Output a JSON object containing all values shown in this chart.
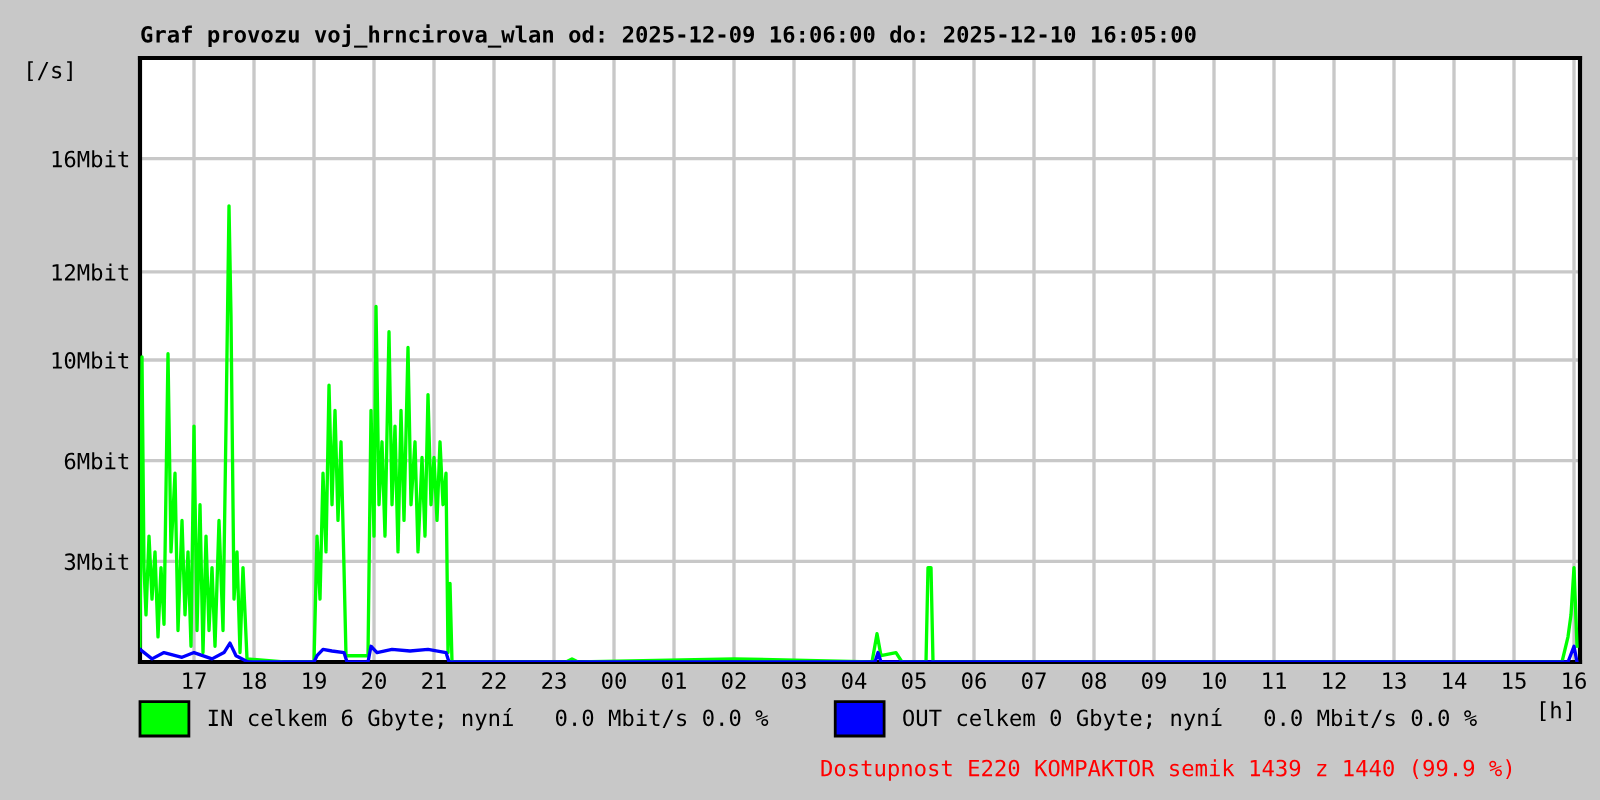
{
  "chart_data": {
    "type": "line",
    "title": "Graf provozu voj_hrncirova_wlan od: 2025-12-09 16:06:00 do: 2025-12-10 16:05:00",
    "xlabel": "[h]",
    "ylabel": "[/s]",
    "xlim": [
      "2025-12-09T16:06",
      "2025-12-10T16:06"
    ],
    "ylim": [
      0,
      19.2
    ],
    "xticks": [
      {
        "value": "2025-12-09T17:00",
        "label": "17"
      },
      {
        "value": "2025-12-09T18:00",
        "label": "18"
      },
      {
        "value": "2025-12-09T19:00",
        "label": "19"
      },
      {
        "value": "2025-12-09T20:00",
        "label": "20"
      },
      {
        "value": "2025-12-09T21:00",
        "label": "21"
      },
      {
        "value": "2025-12-09T22:00",
        "label": "22"
      },
      {
        "value": "2025-12-09T23:00",
        "label": "23"
      },
      {
        "value": "2025-12-10T00:00",
        "label": "00"
      },
      {
        "value": "2025-12-10T01:00",
        "label": "01"
      },
      {
        "value": "2025-12-10T02:00",
        "label": "02"
      },
      {
        "value": "2025-12-10T03:00",
        "label": "03"
      },
      {
        "value": "2025-12-10T04:00",
        "label": "04"
      },
      {
        "value": "2025-12-10T05:00",
        "label": "05"
      },
      {
        "value": "2025-12-10T06:00",
        "label": "06"
      },
      {
        "value": "2025-12-10T07:00",
        "label": "07"
      },
      {
        "value": "2025-12-10T08:00",
        "label": "08"
      },
      {
        "value": "2025-12-10T09:00",
        "label": "09"
      },
      {
        "value": "2025-12-10T10:00",
        "label": "10"
      },
      {
        "value": "2025-12-10T11:00",
        "label": "11"
      },
      {
        "value": "2025-12-10T12:00",
        "label": "12"
      },
      {
        "value": "2025-12-10T13:00",
        "label": "13"
      },
      {
        "value": "2025-12-10T14:00",
        "label": "14"
      },
      {
        "value": "2025-12-10T15:00",
        "label": "15"
      },
      {
        "value": "2025-12-10T16:00",
        "label": "16"
      }
    ],
    "yticks": [
      {
        "value": 3.2,
        "label": "3Mbit"
      },
      {
        "value": 6.4,
        "label": "6Mbit"
      },
      {
        "value": 9.6,
        "label": "10Mbit"
      },
      {
        "value": 12.4,
        "label": "12Mbit"
      },
      {
        "value": 16,
        "label": "16Mbit"
      }
    ],
    "grid": true,
    "legend": "bottom",
    "series": [
      {
        "name": "IN celkem 6 Gbyte; nyní   0.0 Mbit/s 0.0 %",
        "color": "#00ff00",
        "x": [
          "2025-12-09T16:06",
          "2025-12-09T16:08",
          "2025-12-09T16:10",
          "2025-12-09T16:12",
          "2025-12-09T16:15",
          "2025-12-09T16:18",
          "2025-12-09T16:21",
          "2025-12-09T16:24",
          "2025-12-09T16:27",
          "2025-12-09T16:30",
          "2025-12-09T16:34",
          "2025-12-09T16:37",
          "2025-12-09T16:41",
          "2025-12-09T16:44",
          "2025-12-09T16:48",
          "2025-12-09T16:51",
          "2025-12-09T16:54",
          "2025-12-09T16:57",
          "2025-12-09T17:00",
          "2025-12-09T17:03",
          "2025-12-09T17:06",
          "2025-12-09T17:09",
          "2025-12-09T17:12",
          "2025-12-09T17:15",
          "2025-12-09T17:18",
          "2025-12-09T17:21",
          "2025-12-09T17:25",
          "2025-12-09T17:29",
          "2025-12-09T17:32",
          "2025-12-09T17:35",
          "2025-12-09T17:37",
          "2025-12-09T17:40",
          "2025-12-09T17:43",
          "2025-12-09T17:46",
          "2025-12-09T17:49",
          "2025-12-09T17:53",
          "2025-12-09T18:30",
          "2025-12-09T19:00",
          "2025-12-09T19:03",
          "2025-12-09T19:06",
          "2025-12-09T19:09",
          "2025-12-09T19:12",
          "2025-12-09T19:15",
          "2025-12-09T19:18",
          "2025-12-09T19:21",
          "2025-12-09T19:24",
          "2025-12-09T19:27",
          "2025-12-09T19:30",
          "2025-12-09T19:32",
          "2025-12-09T19:54",
          "2025-12-09T19:57",
          "2025-12-09T20:00",
          "2025-12-09T20:02",
          "2025-12-09T20:05",
          "2025-12-09T20:08",
          "2025-12-09T20:11",
          "2025-12-09T20:15",
          "2025-12-09T20:18",
          "2025-12-09T20:21",
          "2025-12-09T20:24",
          "2025-12-09T20:27",
          "2025-12-09T20:30",
          "2025-12-09T20:34",
          "2025-12-09T20:37",
          "2025-12-09T20:41",
          "2025-12-09T20:44",
          "2025-12-09T20:48",
          "2025-12-09T20:51",
          "2025-12-09T20:54",
          "2025-12-09T20:57",
          "2025-12-09T21:00",
          "2025-12-09T21:03",
          "2025-12-09T21:06",
          "2025-12-09T21:09",
          "2025-12-09T21:12",
          "2025-12-09T21:14",
          "2025-12-09T21:16",
          "2025-12-09T21:18",
          "2025-12-09T23:12",
          "2025-12-09T23:18",
          "2025-12-09T23:24",
          "2025-12-10T02:00",
          "2025-12-10T04:18",
          "2025-12-10T04:23",
          "2025-12-10T04:27",
          "2025-12-10T04:42",
          "2025-12-10T04:48",
          "2025-12-10T05:12",
          "2025-12-10T05:14",
          "2025-12-10T05:17",
          "2025-12-10T05:19",
          "2025-12-10T15:48",
          "2025-12-10T15:54",
          "2025-12-10T15:57",
          "2025-12-10T16:00",
          "2025-12-10T16:03"
        ],
        "values": [
          0.5,
          9.7,
          3,
          1.5,
          4,
          2,
          3.5,
          0.8,
          3,
          1.2,
          9.8,
          3.5,
          6,
          1,
          4.5,
          1.5,
          3.5,
          0.5,
          7.5,
          1,
          5,
          0.3,
          4,
          1,
          3,
          0.5,
          4.5,
          1,
          7.5,
          14.5,
          11,
          2,
          3.5,
          0.3,
          3,
          0.1,
          0,
          0,
          4,
          2,
          6,
          3.5,
          8.8,
          5,
          8,
          4.5,
          7,
          3,
          0.2,
          0.2,
          8,
          4,
          11.3,
          5,
          7,
          4,
          10.5,
          5,
          7.5,
          3.5,
          8,
          4.5,
          10,
          5,
          7,
          3.5,
          6.5,
          4,
          8.5,
          5,
          6.5,
          4.5,
          7,
          5,
          6,
          0.3,
          2.5,
          0,
          0,
          0.1,
          0,
          0.1,
          0,
          0.9,
          0.2,
          0.3,
          0,
          0,
          3.0,
          3.0,
          0,
          0,
          0.8,
          1.5,
          3.0,
          0.5
        ]
      },
      {
        "name": "OUT celkem 0 Gbyte; nyní   0.0 Mbit/s 0.0 %",
        "color": "#0000ff",
        "x": [
          "2025-12-09T16:06",
          "2025-12-09T16:18",
          "2025-12-09T16:30",
          "2025-12-09T16:48",
          "2025-12-09T17:00",
          "2025-12-09T17:18",
          "2025-12-09T17:30",
          "2025-12-09T17:36",
          "2025-12-09T17:42",
          "2025-12-09T17:54",
          "2025-12-09T19:00",
          "2025-12-09T19:03",
          "2025-12-09T19:09",
          "2025-12-09T19:18",
          "2025-12-09T19:30",
          "2025-12-09T19:33",
          "2025-12-09T19:54",
          "2025-12-09T19:57",
          "2025-12-09T20:03",
          "2025-12-09T20:18",
          "2025-12-09T20:36",
          "2025-12-09T20:54",
          "2025-12-09T21:12",
          "2025-12-09T21:15",
          "2025-12-10T04:21",
          "2025-12-10T04:24",
          "2025-12-10T04:27",
          "2025-12-10T15:54",
          "2025-12-10T16:00",
          "2025-12-10T16:03"
        ],
        "values": [
          0.4,
          0.1,
          0.3,
          0.15,
          0.3,
          0.1,
          0.3,
          0.6,
          0.2,
          0,
          0,
          0.2,
          0.4,
          0.35,
          0.3,
          0,
          0,
          0.5,
          0.3,
          0.4,
          0.35,
          0.4,
          0.3,
          0,
          0,
          0.3,
          0,
          0,
          0.5,
          0
        ]
      }
    ],
    "annotations": [
      "Dostupnost E220 KOMPAKTOR semik 1439 z 1440 (99.9 %)"
    ]
  }
}
